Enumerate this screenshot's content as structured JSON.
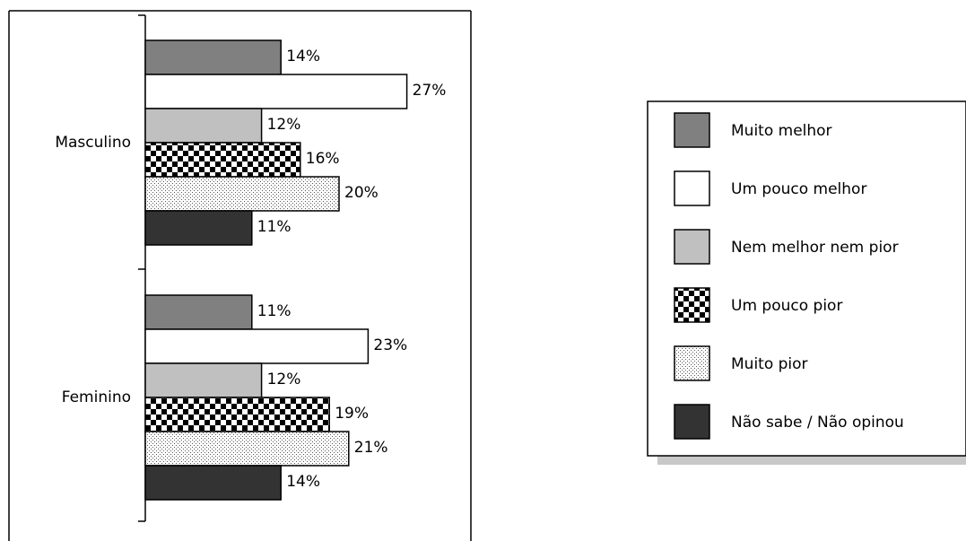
{
  "chart_data": {
    "type": "bar",
    "orientation": "horizontal",
    "categories": [
      "Masculino",
      "Feminino"
    ],
    "series": [
      {
        "name": "Muito melhor",
        "values": [
          14,
          11
        ],
        "pattern": "solid",
        "color": "#808080"
      },
      {
        "name": "Um pouco melhor",
        "values": [
          27,
          23
        ],
        "pattern": "solid",
        "color": "#ffffff"
      },
      {
        "name": "Nem melhor nem pior",
        "values": [
          12,
          12
        ],
        "pattern": "solid",
        "color": "#c0c0c0"
      },
      {
        "name": "Um pouco pior",
        "values": [
          16,
          19
        ],
        "pattern": "checker",
        "color": "#000000"
      },
      {
        "name": "Muito pior",
        "values": [
          20,
          21
        ],
        "pattern": "dots",
        "color": "#555555"
      },
      {
        "name": "Não sabe / Não opinou",
        "values": [
          11,
          14
        ],
        "pattern": "solid",
        "color": "#333333"
      }
    ],
    "value_suffix": "%",
    "legend_position": "right",
    "grid": false
  }
}
